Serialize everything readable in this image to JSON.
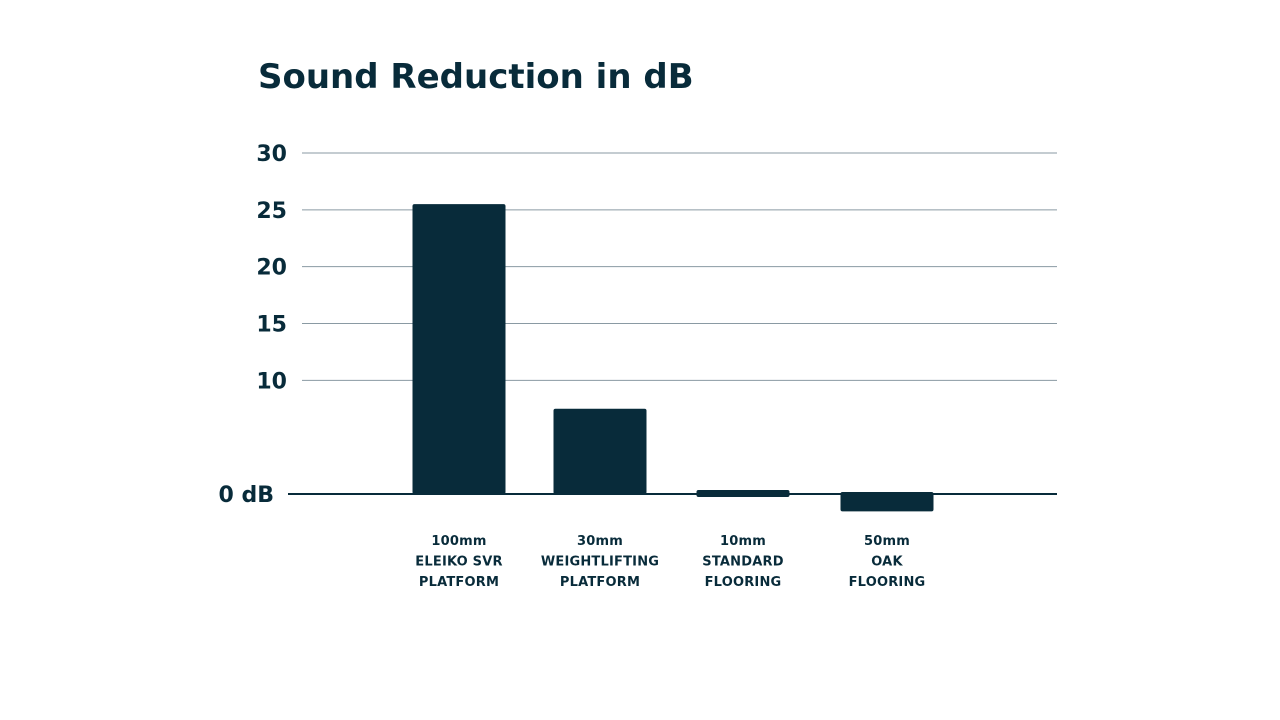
{
  "chart_data": {
    "type": "bar",
    "title": "Sound Reduction in dB",
    "xlabel": "",
    "ylabel": "",
    "ylim": [
      -1,
      30
    ],
    "yticks": [
      {
        "value": 0,
        "label": "0 dB"
      },
      {
        "value": 10,
        "label": "10"
      },
      {
        "value": 15,
        "label": "15"
      },
      {
        "value": 20,
        "label": "20"
      },
      {
        "value": 25,
        "label": "25"
      },
      {
        "value": 30,
        "label": "30"
      }
    ],
    "grid": true,
    "categories": [
      [
        "100mm",
        "ELEIKO SVR",
        "PLATFORM"
      ],
      [
        "30mm",
        "WEIGHTLIFTING",
        "PLATFORM"
      ],
      [
        "10mm",
        "STANDARD",
        "FLOORING"
      ],
      [
        "50mm",
        "OAK",
        "FLOORING"
      ]
    ],
    "values": [
      25.5,
      7.5,
      0.3,
      -1.0
    ],
    "bar_color": "#082b3a"
  }
}
